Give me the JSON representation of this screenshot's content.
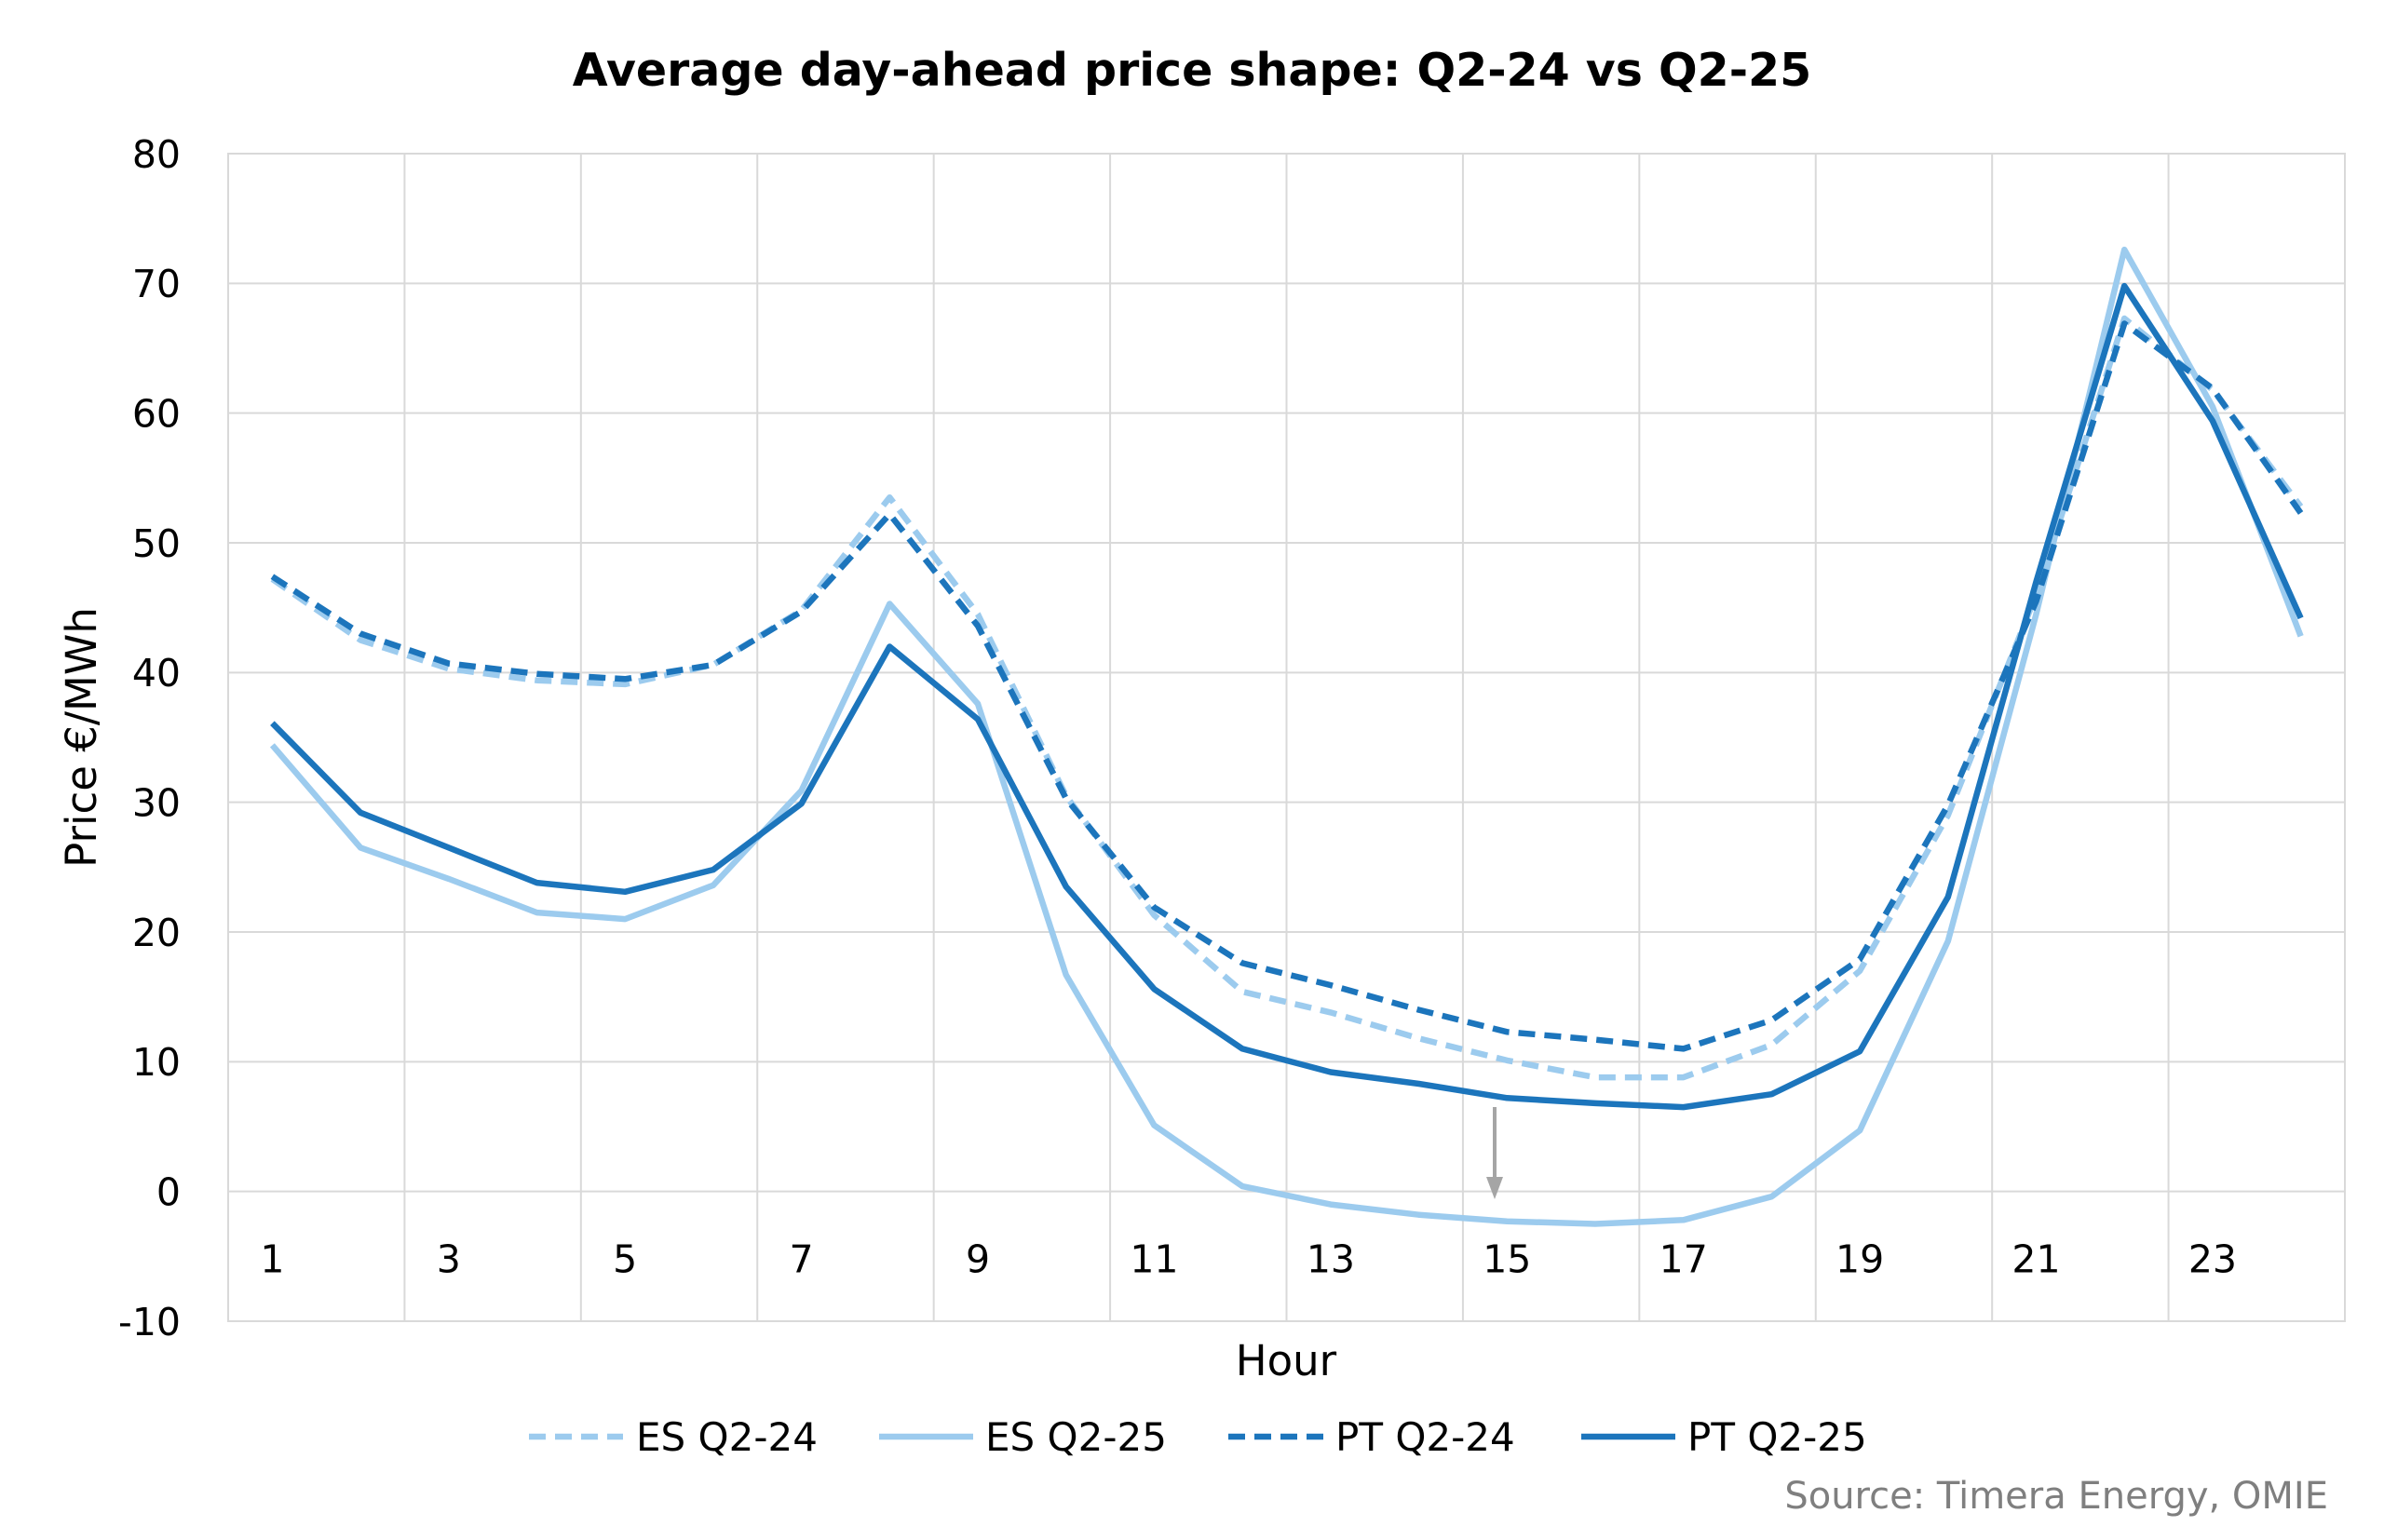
{
  "chart_data": {
    "type": "line",
    "title": "Average day-ahead price shape: Q2-24 vs Q2-25",
    "xlabel": "Hour",
    "ylabel": "Price €/MWh",
    "x": [
      1,
      2,
      3,
      4,
      5,
      6,
      7,
      8,
      9,
      10,
      11,
      12,
      13,
      14,
      15,
      16,
      17,
      18,
      19,
      20,
      21,
      22,
      23,
      24
    ],
    "x_tick_labels": [
      "1",
      "3",
      "5",
      "7",
      "9",
      "11",
      "13",
      "15",
      "17",
      "19",
      "21",
      "23"
    ],
    "ylim": [
      -10,
      80
    ],
    "y_ticks": [
      80,
      70,
      60,
      50,
      40,
      30,
      20,
      10,
      0,
      -10
    ],
    "grid": true,
    "legend_position": "bottom",
    "series": [
      {
        "name": "ES Q2-24",
        "color": "#9CCBEE",
        "dashed": true,
        "values": [
          47.2,
          42.5,
          40.3,
          39.4,
          39.1,
          40.6,
          44.8,
          53.5,
          44.5,
          30.5,
          21.3,
          15.4,
          13.8,
          11.8,
          10.1,
          8.8,
          8.8,
          11.3,
          17.0,
          29.0,
          46.0,
          67.3,
          61.8,
          52.8
        ]
      },
      {
        "name": "ES Q2-25",
        "color": "#9CCBEE",
        "dashed": false,
        "values": [
          34.4,
          26.5,
          24.1,
          21.5,
          21.0,
          23.6,
          30.9,
          45.3,
          37.6,
          16.7,
          5.1,
          0.4,
          -1.0,
          -1.8,
          -2.3,
          -2.5,
          -2.2,
          -0.4,
          4.7,
          19.3,
          44.5,
          72.6,
          60.5,
          42.8
        ]
      },
      {
        "name": "PT Q2-24",
        "color": "#1C75BC",
        "dashed": true,
        "values": [
          47.4,
          43.0,
          40.7,
          39.9,
          39.5,
          40.6,
          44.7,
          52.2,
          43.6,
          30.3,
          21.9,
          17.6,
          15.9,
          14.0,
          12.3,
          11.7,
          11.0,
          13.2,
          17.9,
          29.8,
          45.5,
          66.9,
          61.9,
          52.3
        ]
      },
      {
        "name": "PT Q2-25",
        "color": "#1C75BC",
        "dashed": false,
        "values": [
          36.1,
          29.2,
          26.5,
          23.8,
          23.1,
          24.8,
          29.9,
          42.0,
          36.4,
          23.5,
          15.6,
          11.0,
          9.2,
          8.3,
          7.2,
          6.8,
          6.5,
          7.5,
          10.8,
          22.7,
          47.0,
          69.8,
          59.4,
          44.2
        ]
      }
    ],
    "source": "Source: Timera Energy, OMIE"
  }
}
